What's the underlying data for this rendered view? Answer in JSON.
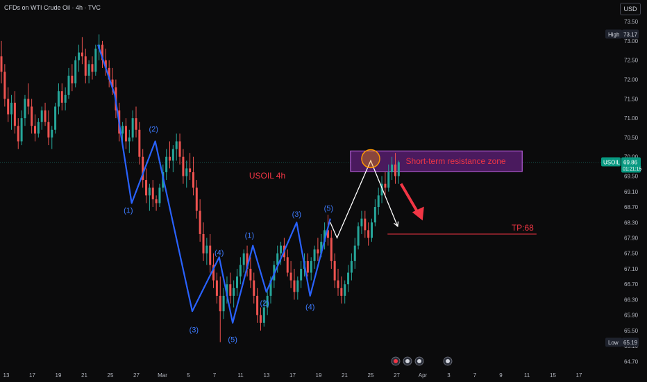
{
  "header": {
    "title": "CFDs on WTI Crude Oil · 4h · TVC",
    "currency": "USD"
  },
  "colors": {
    "bg": "#0b0b0c",
    "up": "#26a69a",
    "down": "#ef5350",
    "wave": "#2962ff",
    "wave_label": "#3d7bff",
    "zone_fill": "#4a1a5e",
    "zone_border": "#b35ad6",
    "accent": "#f23645",
    "white": "#ffffff",
    "axis_text": "#b2b5be",
    "symbol_tag": "#089981"
  },
  "chart_data": {
    "type": "candlestick",
    "symbol": "USOIL",
    "timeframe": "4h",
    "ylim": [
      64.6,
      73.7
    ],
    "price_axis": {
      "ticks": [
        "73.50",
        "73.00",
        "72.50",
        "72.00",
        "71.50",
        "71.00",
        "70.50",
        "70.00",
        "69.50",
        "69.10",
        "68.70",
        "68.30",
        "67.90",
        "67.50",
        "67.10",
        "66.70",
        "66.30",
        "65.90",
        "65.50",
        "65.10",
        "64.70"
      ]
    },
    "high_label": {
      "text": "High",
      "value": "73.17"
    },
    "low_label": {
      "text": "Low",
      "value": "65.19"
    },
    "last_price": {
      "symbol": "USOIL",
      "price": "69.86",
      "countdown": "01:21:15"
    },
    "time_axis": [
      "13",
      "17",
      "19",
      "21",
      "25",
      "27",
      "Mar",
      "5",
      "7",
      "11",
      "13",
      "17",
      "19",
      "21",
      "25",
      "27",
      "Apr",
      "3",
      "7",
      "9",
      "11",
      "15",
      "17"
    ],
    "candles": [
      [
        72.6,
        73.0,
        71.9,
        72.2
      ],
      [
        72.2,
        72.4,
        71.3,
        71.5
      ],
      [
        71.5,
        71.8,
        70.9,
        71.1
      ],
      [
        71.1,
        71.6,
        70.7,
        71.4
      ],
      [
        71.4,
        71.7,
        70.6,
        70.8
      ],
      [
        70.8,
        71.0,
        70.2,
        70.4
      ],
      [
        70.4,
        71.2,
        70.3,
        71.0
      ],
      [
        71.0,
        71.6,
        70.8,
        71.5
      ],
      [
        71.5,
        71.9,
        71.1,
        71.3
      ],
      [
        71.3,
        71.5,
        70.6,
        70.8
      ],
      [
        70.8,
        71.1,
        70.4,
        70.6
      ],
      [
        70.6,
        71.0,
        70.5,
        70.9
      ],
      [
        70.9,
        71.3,
        70.7,
        71.2
      ],
      [
        71.2,
        71.4,
        70.8,
        70.9
      ],
      [
        70.9,
        71.2,
        70.3,
        70.5
      ],
      [
        70.5,
        70.8,
        70.2,
        70.7
      ],
      [
        70.7,
        71.4,
        70.6,
        71.3
      ],
      [
        71.3,
        71.9,
        71.1,
        71.7
      ],
      [
        71.7,
        71.9,
        71.2,
        71.4
      ],
      [
        71.4,
        71.8,
        71.2,
        71.6
      ],
      [
        71.6,
        72.3,
        71.5,
        72.1
      ],
      [
        72.1,
        72.4,
        71.7,
        71.9
      ],
      [
        71.9,
        72.6,
        71.8,
        72.5
      ],
      [
        72.5,
        72.9,
        72.2,
        72.7
      ],
      [
        72.7,
        73.1,
        72.4,
        72.6
      ],
      [
        72.6,
        72.8,
        71.9,
        72.1
      ],
      [
        72.1,
        72.5,
        71.9,
        72.4
      ],
      [
        72.4,
        72.6,
        72.0,
        72.2
      ],
      [
        72.2,
        72.9,
        72.1,
        72.8
      ],
      [
        72.8,
        73.17,
        72.5,
        72.9
      ],
      [
        72.9,
        73.0,
        72.3,
        72.5
      ],
      [
        72.5,
        72.8,
        72.1,
        72.3
      ],
      [
        72.3,
        72.5,
        71.8,
        72.0
      ],
      [
        72.0,
        72.3,
        71.6,
        71.8
      ],
      [
        71.8,
        72.0,
        71.0,
        71.2
      ],
      [
        71.2,
        71.4,
        70.4,
        70.6
      ],
      [
        70.6,
        70.9,
        70.3,
        70.8
      ],
      [
        70.8,
        71.0,
        70.2,
        70.4
      ],
      [
        70.4,
        70.7,
        70.1,
        70.5
      ],
      [
        70.5,
        71.2,
        70.4,
        71.0
      ],
      [
        71.0,
        71.3,
        70.5,
        70.7
      ],
      [
        70.7,
        70.9,
        69.8,
        70.0
      ],
      [
        70.0,
        70.2,
        69.2,
        69.4
      ],
      [
        69.4,
        69.7,
        68.8,
        69.0
      ],
      [
        69.0,
        69.3,
        68.6,
        69.2
      ],
      [
        69.2,
        69.4,
        68.7,
        68.9
      ],
      [
        68.9,
        69.0,
        68.6,
        68.8
      ],
      [
        68.8,
        69.3,
        68.7,
        69.2
      ],
      [
        69.2,
        69.8,
        69.1,
        69.6
      ],
      [
        69.6,
        70.2,
        69.4,
        70.0
      ],
      [
        70.0,
        70.4,
        69.7,
        69.9
      ],
      [
        69.9,
        70.3,
        69.6,
        70.2
      ],
      [
        70.2,
        70.6,
        69.9,
        70.4
      ],
      [
        70.4,
        70.6,
        69.8,
        70.0
      ],
      [
        70.0,
        70.2,
        69.3,
        69.5
      ],
      [
        69.5,
        69.9,
        69.2,
        69.7
      ],
      [
        69.7,
        70.1,
        69.4,
        69.6
      ],
      [
        69.6,
        70.0,
        69.0,
        69.2
      ],
      [
        69.2,
        69.4,
        68.4,
        68.6
      ],
      [
        68.6,
        68.9,
        67.8,
        68.0
      ],
      [
        68.0,
        68.3,
        67.3,
        67.5
      ],
      [
        67.5,
        67.9,
        67.2,
        67.7
      ],
      [
        67.7,
        68.0,
        67.0,
        67.2
      ],
      [
        67.2,
        67.5,
        66.6,
        66.8
      ],
      [
        66.8,
        67.0,
        66.2,
        66.4
      ],
      [
        66.4,
        66.9,
        65.2,
        66.0
      ],
      [
        66.0,
        66.6,
        65.8,
        66.4
      ],
      [
        66.4,
        66.9,
        66.2,
        66.7
      ],
      [
        66.7,
        67.0,
        66.2,
        66.4
      ],
      [
        66.4,
        66.8,
        66.1,
        66.6
      ],
      [
        66.6,
        67.1,
        66.4,
        66.9
      ],
      [
        66.9,
        67.4,
        66.7,
        67.2
      ],
      [
        67.2,
        67.6,
        67.0,
        67.5
      ],
      [
        67.5,
        67.7,
        66.9,
        67.1
      ],
      [
        67.1,
        67.4,
        66.6,
        66.8
      ],
      [
        66.8,
        67.0,
        66.2,
        66.4
      ],
      [
        66.4,
        66.6,
        65.7,
        65.9
      ],
      [
        65.9,
        66.1,
        65.5,
        65.7
      ],
      [
        65.7,
        66.3,
        65.6,
        66.1
      ],
      [
        66.1,
        66.6,
        65.9,
        66.4
      ],
      [
        66.4,
        66.9,
        66.2,
        66.8
      ],
      [
        66.8,
        67.3,
        66.6,
        67.2
      ],
      [
        67.2,
        67.7,
        67.0,
        67.5
      ],
      [
        67.5,
        67.8,
        67.2,
        67.7
      ],
      [
        67.7,
        67.9,
        67.3,
        67.4
      ],
      [
        67.4,
        67.6,
        66.9,
        67.0
      ],
      [
        67.0,
        67.3,
        66.6,
        66.8
      ],
      [
        66.8,
        67.1,
        66.3,
        66.5
      ],
      [
        66.5,
        66.9,
        66.3,
        66.8
      ],
      [
        66.8,
        67.3,
        66.6,
        67.1
      ],
      [
        67.1,
        67.5,
        66.9,
        67.3
      ],
      [
        67.3,
        67.5,
        66.9,
        67.0
      ],
      [
        67.0,
        67.4,
        66.8,
        67.3
      ],
      [
        67.3,
        67.7,
        67.1,
        67.6
      ],
      [
        67.6,
        67.9,
        67.3,
        67.5
      ],
      [
        67.5,
        68.0,
        67.4,
        67.8
      ],
      [
        67.8,
        68.3,
        67.6,
        68.1
      ],
      [
        68.1,
        68.5,
        67.7,
        67.9
      ],
      [
        67.9,
        68.1,
        67.1,
        67.3
      ],
      [
        67.3,
        67.5,
        66.6,
        66.8
      ],
      [
        66.8,
        67.1,
        66.4,
        66.6
      ],
      [
        66.6,
        66.9,
        66.2,
        66.4
      ],
      [
        66.4,
        66.8,
        66.2,
        66.7
      ],
      [
        66.7,
        67.2,
        66.5,
        67.0
      ],
      [
        67.0,
        67.5,
        66.8,
        67.3
      ],
      [
        67.3,
        67.9,
        67.1,
        67.7
      ],
      [
        67.7,
        68.3,
        67.6,
        68.2
      ],
      [
        68.2,
        68.6,
        68.0,
        68.4
      ],
      [
        68.4,
        68.6,
        67.9,
        68.1
      ],
      [
        68.1,
        68.3,
        67.7,
        67.9
      ],
      [
        67.9,
        68.4,
        67.8,
        68.3
      ],
      [
        68.3,
        68.9,
        68.2,
        68.7
      ],
      [
        68.7,
        69.2,
        68.5,
        69.0
      ],
      [
        69.0,
        69.5,
        68.8,
        69.3
      ],
      [
        69.3,
        69.6,
        69.0,
        69.2
      ],
      [
        69.2,
        69.8,
        69.1,
        69.6
      ],
      [
        69.6,
        70.0,
        69.4,
        69.8
      ],
      [
        69.8,
        70.1,
        69.3,
        69.5
      ],
      [
        69.5,
        69.9,
        69.3,
        69.86
      ]
    ],
    "wave_labels": [
      {
        "text": "(2)",
        "t": 45.5,
        "p": 70.65
      },
      {
        "text": "(1)",
        "t": 38,
        "p": 68.55
      },
      {
        "text": "(3)",
        "t": 57.5,
        "p": 65.45
      },
      {
        "text": "(4)",
        "t": 65,
        "p": 67.45
      },
      {
        "text": "(5)",
        "t": 69,
        "p": 65.2
      },
      {
        "text": "(1)",
        "t": 74,
        "p": 67.9
      },
      {
        "text": "(2)",
        "t": 78.5,
        "p": 66.15
      },
      {
        "text": "(3)",
        "t": 88,
        "p": 68.45
      },
      {
        "text": "(4)",
        "t": 92,
        "p": 66.05
      },
      {
        "text": "(5)",
        "t": 97.5,
        "p": 68.6
      }
    ],
    "wave_path": [
      [
        29,
        72.9
      ],
      [
        34,
        71.6
      ],
      [
        39,
        68.8
      ],
      [
        46,
        70.4
      ],
      [
        57,
        66.0
      ],
      [
        65,
        67.4
      ],
      [
        69,
        65.7
      ],
      [
        75,
        67.7
      ],
      [
        79,
        66.5
      ],
      [
        88,
        68.3
      ],
      [
        92,
        66.4
      ],
      [
        98,
        68.4
      ]
    ],
    "annotations": {
      "title_text": "USOIL 4h",
      "zone_text": "Short-term resistance zone",
      "zone": {
        "t0": 104,
        "t1": 155,
        "p0": 69.62,
        "p1": 70.15
      },
      "tp_text": "TP:68",
      "tp_price": 68.0,
      "tp_range": [
        115,
        151
      ],
      "white_path": [
        [
          98,
          68.3
        ],
        [
          100,
          67.9
        ],
        [
          110,
          69.9
        ],
        [
          118,
          68.2
        ]
      ],
      "red_arrow": {
        "from": [
          119,
          69.3
        ],
        "to": [
          125,
          68.35
        ]
      },
      "circle": {
        "t": 110,
        "p": 69.95
      }
    }
  }
}
